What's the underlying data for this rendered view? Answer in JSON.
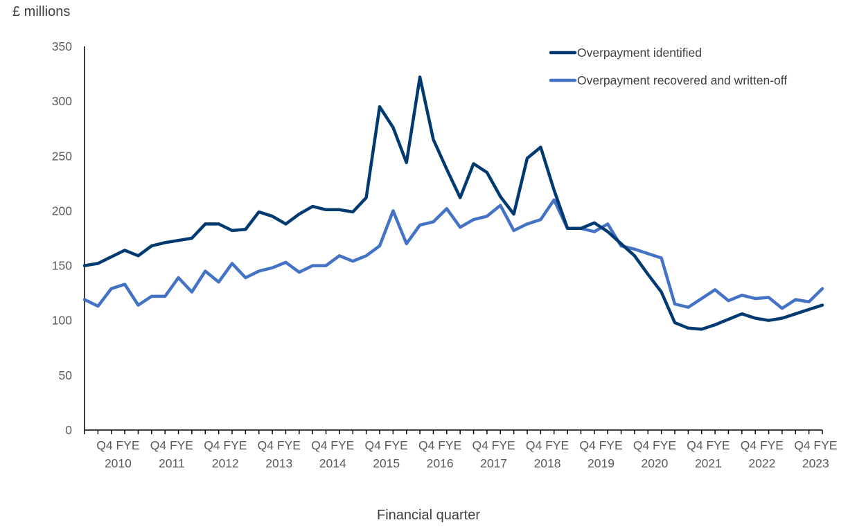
{
  "chart_data": {
    "type": "line",
    "ylabel": "£ millions",
    "xlabel": "Financial quarter",
    "ylim": [
      0,
      350
    ],
    "yticks": [
      0,
      50,
      100,
      150,
      200,
      250,
      300,
      350
    ],
    "grid": false,
    "legend_position": "top-right",
    "x_tick_labels": [
      {
        "q": "Q4 FYE",
        "year": "2010"
      },
      {
        "q": "Q4 FYE",
        "year": "2011"
      },
      {
        "q": "Q4 FYE",
        "year": "2012"
      },
      {
        "q": "Q4 FYE",
        "year": "2013"
      },
      {
        "q": "Q4 FYE",
        "year": "2014"
      },
      {
        "q": "Q4 FYE",
        "year": "2015"
      },
      {
        "q": "Q4 FYE",
        "year": "2016"
      },
      {
        "q": "Q4 FYE",
        "year": "2017"
      },
      {
        "q": "Q4 FYE",
        "year": "2018"
      },
      {
        "q": "Q4 FYE",
        "year": "2019"
      },
      {
        "q": "Q4 FYE",
        "year": "2020"
      },
      {
        "q": "Q4 FYE",
        "year": "2021"
      },
      {
        "q": "Q4 FYE",
        "year": "2022"
      },
      {
        "q": "Q4 FYE",
        "year": "2023"
      }
    ],
    "series": [
      {
        "name": "Overpayment identified",
        "color": "#003A70",
        "values": [
          150,
          152,
          158,
          164,
          159,
          168,
          171,
          173,
          175,
          188,
          188,
          182,
          183,
          199,
          195,
          188,
          197,
          204,
          201,
          201,
          199,
          212,
          295,
          276,
          244,
          322,
          265,
          238,
          212,
          243,
          235,
          213,
          197,
          248,
          258,
          219,
          184,
          184,
          189,
          181,
          170,
          159,
          142,
          126,
          98,
          93,
          92,
          96,
          101,
          106,
          102,
          100,
          102,
          106,
          110,
          114
        ]
      },
      {
        "name": "Overpayment recovered and written-off",
        "color": "#4472C4",
        "values": [
          119,
          113,
          129,
          133,
          114,
          122,
          122,
          139,
          126,
          145,
          135,
          152,
          139,
          145,
          148,
          153,
          144,
          150,
          150,
          159,
          154,
          159,
          168,
          200,
          170,
          187,
          190,
          202,
          185,
          192,
          195,
          205,
          182,
          188,
          192,
          210,
          184,
          184,
          181,
          188,
          168,
          165,
          161,
          157,
          115,
          112,
          120,
          128,
          118,
          123,
          120,
          121,
          111,
          119,
          117,
          129
        ]
      }
    ]
  }
}
